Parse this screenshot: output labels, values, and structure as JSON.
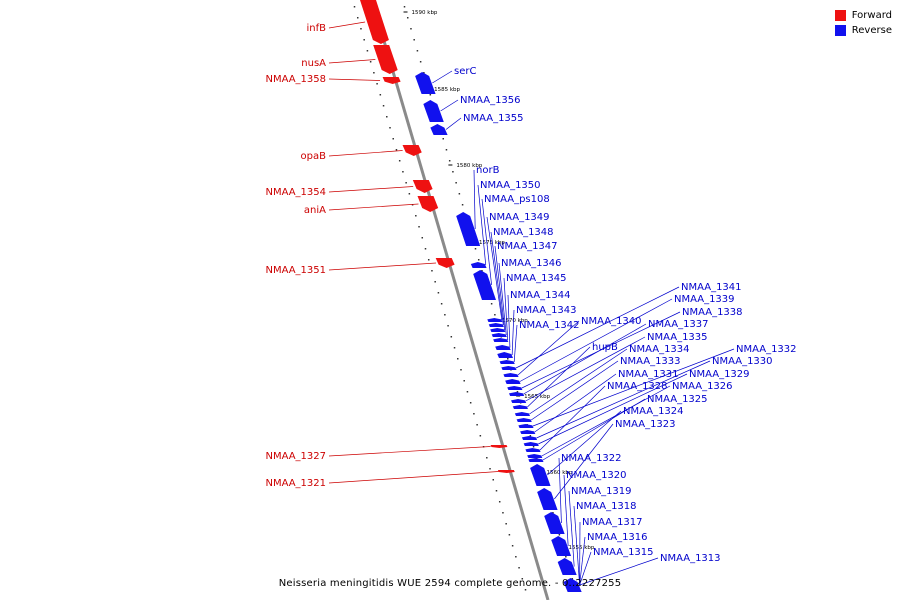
{
  "colors": {
    "forward": "#ee1111",
    "reverse": "#1111ee",
    "backbone": "#8a8a8a",
    "label_forward": "#cc0000",
    "label_reverse": "#0000cc"
  },
  "legend": {
    "forward_label": "Forward",
    "reverse_label": "Reverse"
  },
  "caption": "Neisseria meningitidis WUE 2594 complete genome. - 0..2227255",
  "ticks": [
    "1590 kbp",
    "1585 kbp",
    "1580 kbp",
    "1575 kbp",
    "1570 kbp",
    "1565 kbp",
    "1560 kbp",
    "1555 kbp"
  ],
  "forward_genes": [
    "infB",
    "nusA",
    "NMAA_1358",
    "opaB",
    "NMAA_1354",
    "aniA",
    "NMAA_1351",
    "NMAA_1327",
    "NMAA_1321"
  ],
  "reverse_genes": [
    "serC",
    "NMAA_1356",
    "NMAA_1355",
    "norB",
    "NMAA_1350",
    "NMAA_ps108",
    "NMAA_1349",
    "NMAA_1348",
    "NMAA_1347",
    "NMAA_1346",
    "NMAA_1345",
    "NMAA_1344",
    "NMAA_1343",
    "NMAA_1342",
    "NMAA_1341",
    "NMAA_1340",
    "NMAA_1339",
    "NMAA_1338",
    "NMAA_1337",
    "NMAA_1335",
    "hupB",
    "NMAA_1334",
    "NMAA_1333",
    "NMAA_1332",
    "NMAA_1331",
    "NMAA_1330",
    "NMAA_1329",
    "NMAA_1328",
    "NMAA_1326",
    "NMAA_1325",
    "NMAA_1324",
    "NMAA_1323",
    "NMAA_1322",
    "NMAA_1320",
    "NMAA_1319",
    "NMAA_1318",
    "NMAA_1317",
    "NMAA_1316",
    "NMAA_1315",
    "NMAA_1313"
  ]
}
